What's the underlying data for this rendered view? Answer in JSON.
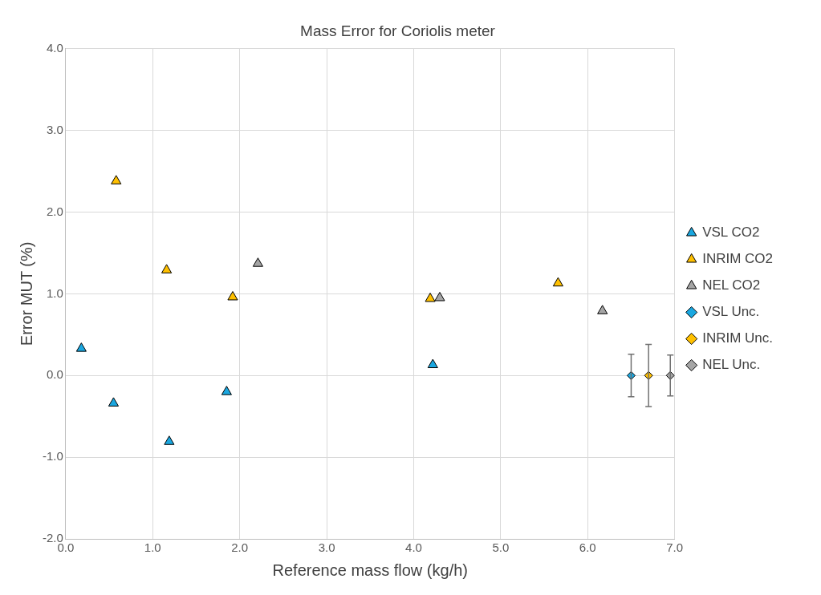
{
  "chart_data": {
    "type": "scatter",
    "title": "Mass Error for Coriolis meter",
    "xlabel": "Reference mass flow (kg/h)",
    "ylabel": "Error MUT (%)",
    "xlim": [
      0,
      7
    ],
    "xticks": [
      {
        "value": 0,
        "label": "0.0"
      },
      {
        "value": 1,
        "label": "1.0"
      },
      {
        "value": 2,
        "label": "2.0"
      },
      {
        "value": 3,
        "label": "3.0"
      },
      {
        "value": 4,
        "label": "4.0"
      },
      {
        "value": 5,
        "label": "5.0"
      },
      {
        "value": 6,
        "label": "6.0"
      },
      {
        "value": 7,
        "label": "7.0"
      }
    ],
    "ylim": [
      -2,
      4
    ],
    "yticks": [
      {
        "value": -2,
        "label": "-2.0"
      },
      {
        "value": -1,
        "label": "-1.0"
      },
      {
        "value": 0,
        "label": "0.0"
      },
      {
        "value": 1,
        "label": "1.0"
      },
      {
        "value": 2,
        "label": "2.0"
      },
      {
        "value": 3,
        "label": "3.0"
      },
      {
        "value": 4,
        "label": "4.0"
      }
    ],
    "grid": true,
    "legend": "right",
    "series": [
      {
        "name": "VSL CO2",
        "color": "#1aa7e0",
        "marker": "triangle",
        "x": [
          0.18,
          0.55,
          1.19,
          1.85,
          4.22
        ],
        "values": [
          0.33,
          -0.34,
          -0.81,
          -0.2,
          0.13
        ]
      },
      {
        "name": "INRIM CO2",
        "color": "#ffc000",
        "marker": "triangle",
        "x": [
          0.58,
          1.16,
          1.92,
          4.19,
          5.66
        ],
        "values": [
          2.38,
          1.29,
          0.96,
          0.94,
          1.13
        ]
      },
      {
        "name": "NEL CO2",
        "color": "#a5a5a5",
        "marker": "triangle",
        "x": [
          2.21,
          4.3,
          6.17
        ],
        "values": [
          1.37,
          0.95,
          0.79
        ]
      },
      {
        "name": "VSL Unc.",
        "color": "#1aa7e0",
        "marker": "diamond",
        "x": [
          6.5
        ],
        "values": [
          0
        ],
        "errors": [
          0.26
        ]
      },
      {
        "name": "INRIM Unc.",
        "color": "#ffc000",
        "marker": "diamond",
        "x": [
          6.7
        ],
        "values": [
          0
        ],
        "errors": [
          0.38
        ]
      },
      {
        "name": "NEL Unc.",
        "color": "#a5a5a5",
        "marker": "diamond",
        "x": [
          6.95
        ],
        "values": [
          0
        ],
        "errors": [
          0.25
        ]
      }
    ]
  }
}
